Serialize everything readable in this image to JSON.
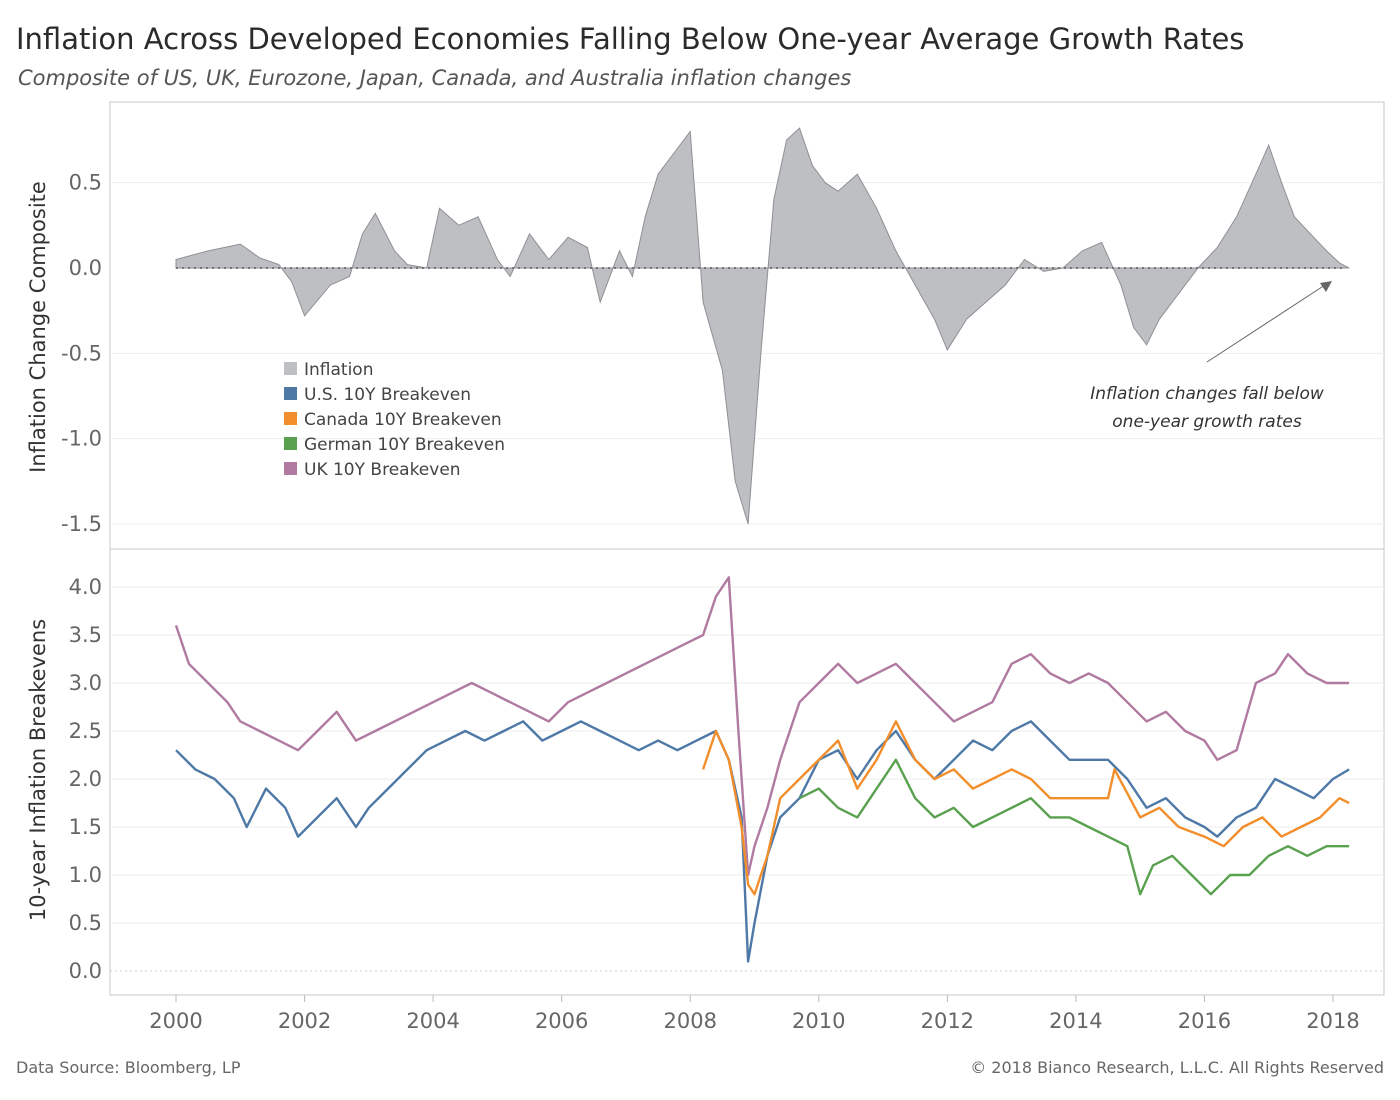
{
  "title": "Inflation Across Developed Economies Falling Below One-year Average Growth Rates",
  "subtitle": "Composite of US, UK, Eurozone, Japan, Canada, and Australia inflation changes",
  "footer": {
    "source": "Data Source: Bloomberg, LP",
    "copyright": "© 2018 Bianco Research, L.L.C. All Rights Reserved"
  },
  "chart_data": {
    "type": "area",
    "x_ticks": [
      "2000",
      "2002",
      "2004",
      "2006",
      "2008",
      "2010",
      "2012",
      "2014",
      "2016",
      "2018"
    ],
    "grid": true,
    "legend_position": "left-inside-top-panel",
    "legend": [
      {
        "name": "Inflation",
        "color": "#bdbfc2"
      },
      {
        "name": "U.S. 10Y Breakeven",
        "color": "#4e79a7"
      },
      {
        "name": "Canada 10Y Breakeven",
        "color": "#f28e2b"
      },
      {
        "name": "German 10Y Breakeven",
        "color": "#59a14f"
      },
      {
        "name": "UK 10Y Breakeven",
        "color": "#b07aa1"
      }
    ],
    "annotation": [
      "Inflation changes fall below",
      "one-year growth rates"
    ],
    "top_panel": {
      "ylabel": "Inflation Change Composite",
      "ylim": [
        -1.55,
        0.95
      ],
      "y_ticks": [
        "0.5",
        "0.0",
        "-0.5",
        "-1.0",
        "-1.5"
      ],
      "y_tick_values": [
        0.5,
        0.0,
        -0.5,
        -1.0,
        -1.5
      ],
      "series": [
        {
          "name": "Inflation",
          "color": "#bdbfc2",
          "x": [
            2000.0,
            2000.5,
            2001.0,
            2001.3,
            2001.6,
            2001.8,
            2002.0,
            2002.4,
            2002.7,
            2002.9,
            2003.1,
            2003.4,
            2003.6,
            2003.9,
            2004.1,
            2004.4,
            2004.7,
            2005.0,
            2005.2,
            2005.5,
            2005.8,
            2006.1,
            2006.4,
            2006.6,
            2006.9,
            2007.1,
            2007.3,
            2007.5,
            2007.8,
            2008.0,
            2008.2,
            2008.5,
            2008.7,
            2008.9,
            2009.1,
            2009.3,
            2009.5,
            2009.7,
            2009.9,
            2010.1,
            2010.3,
            2010.6,
            2010.9,
            2011.2,
            2011.5,
            2011.8,
            2012.0,
            2012.3,
            2012.6,
            2012.9,
            2013.2,
            2013.5,
            2013.8,
            2014.1,
            2014.4,
            2014.7,
            2014.9,
            2015.1,
            2015.3,
            2015.6,
            2015.9,
            2016.2,
            2016.5,
            2016.8,
            2017.0,
            2017.2,
            2017.4,
            2017.7,
            2017.9,
            2018.1,
            2018.25
          ],
          "y": [
            0.05,
            0.1,
            0.14,
            0.06,
            0.02,
            -0.08,
            -0.28,
            -0.1,
            -0.05,
            0.2,
            0.32,
            0.1,
            0.02,
            0.0,
            0.35,
            0.25,
            0.3,
            0.05,
            -0.05,
            0.2,
            0.05,
            0.18,
            0.12,
            -0.2,
            0.1,
            -0.05,
            0.3,
            0.55,
            0.7,
            0.8,
            -0.2,
            -0.6,
            -1.25,
            -1.5,
            -0.5,
            0.4,
            0.75,
            0.82,
            0.6,
            0.5,
            0.45,
            0.55,
            0.35,
            0.1,
            -0.1,
            -0.3,
            -0.48,
            -0.3,
            -0.2,
            -0.1,
            0.05,
            -0.02,
            0.0,
            0.1,
            0.15,
            -0.1,
            -0.35,
            -0.45,
            -0.3,
            -0.15,
            0.0,
            0.12,
            0.3,
            0.55,
            0.72,
            0.5,
            0.3,
            0.18,
            0.1,
            0.03,
            0.0
          ]
        }
      ]
    },
    "bottom_panel": {
      "ylabel": "10-year Inflation Breakevens",
      "ylim": [
        -0.1,
        4.3
      ],
      "y_ticks": [
        "4.0",
        "3.5",
        "3.0",
        "2.5",
        "2.0",
        "1.5",
        "1.0",
        "0.5",
        "0.0"
      ],
      "y_tick_values": [
        4.0,
        3.5,
        3.0,
        2.5,
        2.0,
        1.5,
        1.0,
        0.5,
        0.0
      ],
      "series": [
        {
          "name": "UK 10Y Breakeven",
          "color": "#b07aa1",
          "x": [
            2000.0,
            2000.2,
            2000.5,
            2000.8,
            2001.0,
            2001.3,
            2001.6,
            2001.9,
            2002.2,
            2002.5,
            2002.8,
            2003.1,
            2003.4,
            2003.7,
            2004.0,
            2004.3,
            2004.6,
            2004.9,
            2005.2,
            2005.5,
            2005.8,
            2006.1,
            2006.4,
            2006.7,
            2007.0,
            2007.3,
            2007.6,
            2007.9,
            2008.2,
            2008.4,
            2008.6,
            2008.75,
            2008.9,
            2009.0,
            2009.2,
            2009.4,
            2009.7,
            2010.0,
            2010.3,
            2010.6,
            2010.9,
            2011.2,
            2011.5,
            2011.8,
            2012.1,
            2012.4,
            2012.7,
            2013.0,
            2013.3,
            2013.6,
            2013.9,
            2014.2,
            2014.5,
            2014.8,
            2015.1,
            2015.4,
            2015.7,
            2016.0,
            2016.2,
            2016.5,
            2016.8,
            2017.1,
            2017.3,
            2017.6,
            2017.9,
            2018.25
          ],
          "y": [
            3.6,
            3.2,
            3.0,
            2.8,
            2.6,
            2.5,
            2.4,
            2.3,
            2.5,
            2.7,
            2.4,
            2.5,
            2.6,
            2.7,
            2.8,
            2.9,
            3.0,
            2.9,
            2.8,
            2.7,
            2.6,
            2.8,
            2.9,
            3.0,
            3.1,
            3.2,
            3.3,
            3.4,
            3.5,
            3.9,
            4.1,
            2.5,
            1.0,
            1.3,
            1.7,
            2.2,
            2.8,
            3.0,
            3.2,
            3.0,
            3.1,
            3.2,
            3.0,
            2.8,
            2.6,
            2.7,
            2.8,
            3.2,
            3.3,
            3.1,
            3.0,
            3.1,
            3.0,
            2.8,
            2.6,
            2.7,
            2.5,
            2.4,
            2.2,
            2.3,
            3.0,
            3.1,
            3.3,
            3.1,
            3.0,
            3.0
          ]
        },
        {
          "name": "U.S. 10Y Breakeven",
          "color": "#4e79a7",
          "x": [
            2000.0,
            2000.3,
            2000.6,
            2000.9,
            2001.1,
            2001.4,
            2001.7,
            2001.9,
            2002.2,
            2002.5,
            2002.8,
            2003.0,
            2003.3,
            2003.6,
            2003.9,
            2004.2,
            2004.5,
            2004.8,
            2005.1,
            2005.4,
            2005.7,
            2006.0,
            2006.3,
            2006.6,
            2006.9,
            2007.2,
            2007.5,
            2007.8,
            2008.1,
            2008.4,
            2008.6,
            2008.8,
            2008.9,
            2009.0,
            2009.2,
            2009.4,
            2009.7,
            2010.0,
            2010.3,
            2010.6,
            2010.9,
            2011.2,
            2011.5,
            2011.8,
            2012.1,
            2012.4,
            2012.7,
            2013.0,
            2013.3,
            2013.6,
            2013.9,
            2014.2,
            2014.5,
            2014.8,
            2015.1,
            2015.4,
            2015.7,
            2016.0,
            2016.2,
            2016.5,
            2016.8,
            2017.1,
            2017.4,
            2017.7,
            2018.0,
            2018.25
          ],
          "y": [
            2.3,
            2.1,
            2.0,
            1.8,
            1.5,
            1.9,
            1.7,
            1.4,
            1.6,
            1.8,
            1.5,
            1.7,
            1.9,
            2.1,
            2.3,
            2.4,
            2.5,
            2.4,
            2.5,
            2.6,
            2.4,
            2.5,
            2.6,
            2.5,
            2.4,
            2.3,
            2.4,
            2.3,
            2.4,
            2.5,
            2.2,
            1.6,
            0.1,
            0.5,
            1.2,
            1.6,
            1.8,
            2.2,
            2.3,
            2.0,
            2.3,
            2.5,
            2.2,
            2.0,
            2.2,
            2.4,
            2.3,
            2.5,
            2.6,
            2.4,
            2.2,
            2.2,
            2.2,
            2.0,
            1.7,
            1.8,
            1.6,
            1.5,
            1.4,
            1.6,
            1.7,
            2.0,
            1.9,
            1.8,
            2.0,
            2.1
          ]
        },
        {
          "name": "Canada 10Y Breakeven",
          "color": "#f28e2b",
          "x": [
            2008.2,
            2008.4,
            2008.6,
            2008.8,
            2008.9,
            2009.0,
            2009.2,
            2009.4,
            2009.7,
            2010.0,
            2010.3,
            2010.6,
            2010.9,
            2011.2,
            2011.5,
            2011.8,
            2012.1,
            2012.4,
            2012.7,
            2013.0,
            2013.3,
            2013.6,
            2014.0,
            2014.5,
            2014.6,
            2015.0,
            2015.3,
            2015.6,
            2016.0,
            2016.3,
            2016.6,
            2016.9,
            2017.2,
            2017.5,
            2017.8,
            2018.1,
            2018.25
          ],
          "y": [
            2.1,
            2.5,
            2.2,
            1.5,
            0.9,
            0.8,
            1.2,
            1.8,
            2.0,
            2.2,
            2.4,
            1.9,
            2.2,
            2.6,
            2.2,
            2.0,
            2.1,
            1.9,
            2.0,
            2.1,
            2.0,
            1.8,
            1.8,
            1.8,
            2.1,
            1.6,
            1.7,
            1.5,
            1.4,
            1.3,
            1.5,
            1.6,
            1.4,
            1.5,
            1.6,
            1.8,
            1.75
          ]
        },
        {
          "name": "German 10Y Breakeven",
          "color": "#59a14f",
          "x": [
            2009.7,
            2010.0,
            2010.3,
            2010.6,
            2010.9,
            2011.2,
            2011.5,
            2011.8,
            2012.1,
            2012.4,
            2012.7,
            2013.0,
            2013.3,
            2013.6,
            2013.9,
            2014.2,
            2014.5,
            2014.8,
            2015.0,
            2015.2,
            2015.5,
            2015.8,
            2016.1,
            2016.4,
            2016.7,
            2017.0,
            2017.3,
            2017.6,
            2017.9,
            2018.25
          ],
          "y": [
            1.8,
            1.9,
            1.7,
            1.6,
            1.9,
            2.2,
            1.8,
            1.6,
            1.7,
            1.5,
            1.6,
            1.7,
            1.8,
            1.6,
            1.6,
            1.5,
            1.4,
            1.3,
            0.8,
            1.1,
            1.2,
            1.0,
            0.8,
            1.0,
            1.0,
            1.2,
            1.3,
            1.2,
            1.3,
            1.3
          ]
        }
      ]
    }
  }
}
